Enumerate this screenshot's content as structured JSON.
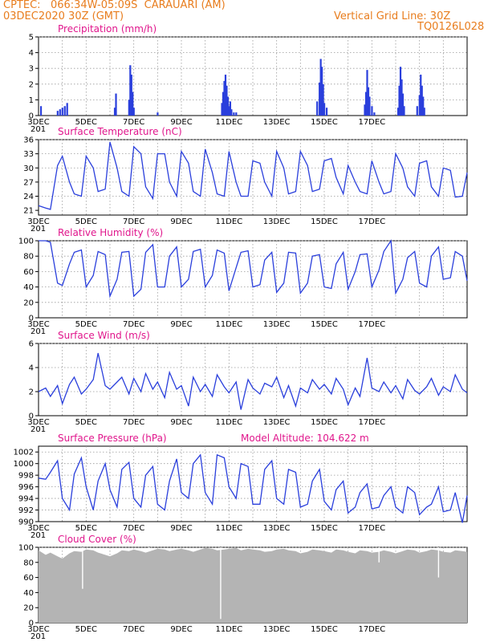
{
  "header": {
    "source": "CPTEC:",
    "location": "066:34W-05:09S",
    "station": "CARAUARI (AM)",
    "init": "03DEC2020 30Z (GMT)",
    "grid_note": "Vertical Grid Line: 30Z",
    "run_code": "TQ0126L028"
  },
  "colors": {
    "header": "#e87d1e",
    "title": "#e0168c",
    "series": "#2a3fdc",
    "cloud": "#b4b4b4"
  },
  "x_labels": [
    "3DEC",
    "5DEC",
    "7DEC",
    "9DEC",
    "11DEC",
    "13DEC",
    "15DEC",
    "17DEC"
  ],
  "year_stub": "201",
  "chart_data": [
    {
      "type": "bar",
      "title": "Precipitation (mm/h)",
      "ylim": [
        0,
        5
      ],
      "yticks": [
        "0",
        "1",
        "2",
        "3",
        "4",
        "5"
      ],
      "x_day_offsets": [
        0.1,
        0.8,
        0.9,
        1.0,
        1.1,
        1.2,
        3.2,
        3.25,
        3.8,
        3.85,
        3.9,
        3.95,
        4.0,
        5.0,
        7.7,
        7.75,
        7.8,
        7.85,
        7.9,
        7.95,
        8.0,
        8.05,
        8.1,
        8.2,
        8.3,
        11.7,
        11.8,
        11.85,
        11.9,
        11.95,
        12.0,
        12.1,
        13.7,
        13.75,
        13.8,
        13.85,
        13.9,
        14.0,
        14.1,
        15.1,
        15.15,
        15.2,
        15.25,
        15.3,
        15.35,
        15.9,
        16.0,
        16.05,
        16.1,
        16.15,
        16.2
      ],
      "values": [
        0.6,
        0.3,
        0.4,
        0.5,
        0.6,
        0.8,
        0.5,
        1.4,
        1.0,
        3.2,
        2.6,
        1.5,
        0.5,
        0.2,
        0.8,
        1.5,
        2.2,
        2.6,
        1.9,
        1.2,
        0.6,
        0.9,
        0.4,
        0.2,
        0.2,
        0.9,
        2.1,
        3.6,
        3.1,
        2.0,
        0.8,
        0.5,
        0.7,
        1.5,
        2.9,
        1.8,
        1.2,
        0.6,
        0.2,
        0.5,
        1.9,
        3.1,
        2.3,
        1.4,
        0.6,
        0.6,
        1.3,
        2.6,
        1.9,
        1.2,
        0.5
      ]
    },
    {
      "type": "line",
      "title": "Surface Temperature (nC)",
      "ylim": [
        20,
        36
      ],
      "yticks": [
        "21",
        "24",
        "27",
        "30",
        "33",
        "36"
      ],
      "x_day_offsets": [
        0,
        0.3,
        0.5,
        0.8,
        1.0,
        1.3,
        1.5,
        1.8,
        2.0,
        2.3,
        2.5,
        2.8,
        3.0,
        3.3,
        3.5,
        3.8,
        4.0,
        4.3,
        4.5,
        4.8,
        5.0,
        5.3,
        5.5,
        5.8,
        6.0,
        6.3,
        6.5,
        6.8,
        7.0,
        7.3,
        7.5,
        7.8,
        8.0,
        8.3,
        8.5,
        8.8,
        9.0,
        9.3,
        9.5,
        9.8,
        10.0,
        10.3,
        10.5,
        10.8,
        11.0,
        11.3,
        11.5,
        11.8,
        12.0,
        12.3,
        12.5,
        12.8,
        13.0,
        13.3,
        13.5,
        13.8,
        14.0,
        14.3,
        14.5,
        14.8,
        15.0,
        15.3,
        15.5,
        15.8,
        16.0,
        16.3,
        16.5,
        16.8,
        17.0,
        17.3,
        17.5,
        17.8,
        18.0
      ],
      "values": [
        22,
        21.5,
        21.2,
        30.5,
        32.5,
        27,
        24.5,
        24,
        32.5,
        30,
        25,
        25.5,
        35.5,
        30,
        25,
        24,
        34.5,
        33,
        26,
        23.5,
        33,
        33,
        27,
        24,
        33.5,
        31,
        25,
        24,
        34,
        29,
        24.5,
        24,
        33.5,
        27,
        24,
        24,
        31.5,
        31,
        27,
        24,
        33.5,
        30,
        24.5,
        25,
        33.5,
        30.5,
        25,
        25.5,
        31.5,
        32,
        28,
        24.5,
        30.5,
        27,
        25,
        24.5,
        31.5,
        27,
        24.5,
        25,
        33,
        30,
        26,
        24,
        31,
        31.5,
        26,
        24,
        30,
        29.5,
        23.8,
        24,
        29
      ]
    },
    {
      "type": "line",
      "title": "Relative Humidity (%)",
      "ylim": [
        0,
        100
      ],
      "yticks": [
        "0",
        "20",
        "40",
        "60",
        "80",
        "100"
      ],
      "x_day_offsets": [
        0,
        0.3,
        0.5,
        0.8,
        1.0,
        1.3,
        1.5,
        1.8,
        2.0,
        2.3,
        2.5,
        2.8,
        3.0,
        3.3,
        3.5,
        3.8,
        4.0,
        4.3,
        4.5,
        4.8,
        5.0,
        5.3,
        5.5,
        5.8,
        6.0,
        6.3,
        6.5,
        6.8,
        7.0,
        7.3,
        7.5,
        7.8,
        8.0,
        8.3,
        8.5,
        8.8,
        9.0,
        9.3,
        9.5,
        9.8,
        10.0,
        10.3,
        10.5,
        10.8,
        11.0,
        11.3,
        11.5,
        11.8,
        12.0,
        12.3,
        12.5,
        12.8,
        13.0,
        13.3,
        13.5,
        13.8,
        14.0,
        14.3,
        14.5,
        14.8,
        15.0,
        15.3,
        15.5,
        15.8,
        16.0,
        16.3,
        16.5,
        16.8,
        17.0,
        17.3,
        17.5,
        17.8,
        18.0
      ],
      "values": [
        100,
        100,
        98,
        45,
        42,
        70,
        85,
        88,
        40,
        55,
        86,
        82,
        28,
        50,
        85,
        86,
        28,
        37,
        85,
        95,
        40,
        40,
        80,
        92,
        40,
        50,
        86,
        89,
        40,
        55,
        88,
        84,
        35,
        65,
        85,
        87,
        40,
        43,
        75,
        85,
        33,
        45,
        85,
        84,
        32,
        45,
        80,
        82,
        40,
        38,
        70,
        85,
        37,
        60,
        82,
        83,
        40,
        62,
        86,
        100,
        32,
        50,
        78,
        86,
        45,
        40,
        80,
        92,
        50,
        52,
        86,
        80,
        48
      ]
    },
    {
      "type": "line",
      "title": "Surface Wind (m/s)",
      "ylim": [
        0,
        6
      ],
      "yticks": [
        "0",
        "2",
        "4",
        "6"
      ],
      "x_day_offsets": [
        0,
        0.3,
        0.5,
        0.8,
        1.0,
        1.3,
        1.5,
        1.8,
        2.0,
        2.3,
        2.5,
        2.8,
        3.0,
        3.3,
        3.5,
        3.8,
        4.0,
        4.3,
        4.5,
        4.8,
        5.0,
        5.3,
        5.5,
        5.8,
        6.0,
        6.3,
        6.5,
        6.8,
        7.0,
        7.3,
        7.5,
        7.8,
        8.0,
        8.3,
        8.5,
        8.8,
        9.0,
        9.3,
        9.5,
        9.8,
        10.0,
        10.3,
        10.5,
        10.8,
        11.0,
        11.3,
        11.5,
        11.8,
        12.0,
        12.3,
        12.5,
        12.8,
        13.0,
        13.3,
        13.5,
        13.8,
        14.0,
        14.3,
        14.5,
        14.8,
        15.0,
        15.3,
        15.5,
        15.8,
        16.0,
        16.3,
        16.5,
        16.8,
        17.0,
        17.3,
        17.5,
        17.8,
        18.0
      ],
      "values": [
        2.0,
        2.3,
        1.6,
        2.5,
        1.0,
        2.6,
        3.2,
        1.8,
        2.2,
        3.0,
        5.2,
        2.5,
        2.2,
        2.8,
        3.2,
        1.8,
        3.1,
        2.0,
        3.5,
        2.2,
        2.8,
        1.5,
        3.6,
        2.2,
        2.5,
        0.8,
        3.2,
        2.0,
        2.6,
        1.6,
        3.4,
        2.4,
        1.9,
        2.8,
        0.5,
        3.0,
        2.3,
        1.8,
        2.7,
        2.4,
        3.2,
        1.5,
        2.5,
        0.8,
        2.3,
        1.9,
        3.0,
        2.2,
        2.6,
        1.8,
        3.1,
        2.2,
        0.9,
        2.3,
        1.6,
        4.8,
        2.3,
        2.0,
        2.8,
        1.9,
        2.5,
        1.4,
        3.0,
        2.1,
        1.8,
        2.4,
        3.1,
        1.7,
        2.4,
        2.0,
        3.4,
        2.2,
        1.9
      ]
    },
    {
      "type": "line",
      "title": "Surface Pressure (hPa)",
      "subtitle": "Model Altitude: 104.622 m",
      "ylim": [
        990,
        1003
      ],
      "yticks": [
        "990",
        "992",
        "994",
        "996",
        "998",
        "1000",
        "1002"
      ],
      "x_day_offsets": [
        0,
        0.3,
        0.5,
        0.8,
        1.0,
        1.3,
        1.5,
        1.8,
        2.0,
        2.3,
        2.5,
        2.8,
        3.0,
        3.3,
        3.5,
        3.8,
        4.0,
        4.3,
        4.5,
        4.8,
        5.0,
        5.3,
        5.5,
        5.8,
        6.0,
        6.3,
        6.5,
        6.8,
        7.0,
        7.3,
        7.5,
        7.8,
        8.0,
        8.3,
        8.5,
        8.8,
        9.0,
        9.3,
        9.5,
        9.8,
        10.0,
        10.3,
        10.5,
        10.8,
        11.0,
        11.3,
        11.5,
        11.8,
        12.0,
        12.3,
        12.5,
        12.8,
        13.0,
        13.3,
        13.5,
        13.8,
        14.0,
        14.3,
        14.5,
        14.8,
        15.0,
        15.3,
        15.5,
        15.8,
        16.0,
        16.3,
        16.5,
        16.8,
        17.0,
        17.3,
        17.5,
        17.8,
        18.0
      ],
      "values": [
        997.5,
        997.3,
        998.5,
        1000.5,
        994,
        992,
        998.2,
        1001,
        996,
        992,
        997,
        1000,
        995.5,
        992.5,
        999,
        1000.2,
        994,
        992.5,
        998,
        999.5,
        993,
        992,
        997,
        1000.8,
        995,
        994,
        1000,
        1001.5,
        995,
        993,
        1001.5,
        1001,
        996,
        994,
        1000,
        999.5,
        993,
        993,
        999,
        1000.5,
        994,
        993,
        999,
        998.5,
        992.5,
        993,
        997,
        999,
        993.5,
        992,
        995.5,
        997,
        991.5,
        992.5,
        995,
        996.5,
        992.2,
        992.5,
        994.5,
        996,
        992.5,
        991.5,
        996,
        995,
        991.2,
        992.5,
        993,
        996,
        991.7,
        992,
        995,
        989.8,
        994.5
      ]
    },
    {
      "type": "area",
      "title": "Cloud Cover (%)",
      "ylim": [
        0,
        100
      ],
      "yticks": [
        "0",
        "20",
        "40",
        "60",
        "80",
        "100"
      ],
      "x_day_offsets": [
        0,
        0.3,
        0.5,
        0.8,
        1.0,
        1.3,
        1.5,
        1.8,
        2.0,
        2.3,
        2.5,
        2.8,
        3.0,
        3.3,
        3.5,
        3.8,
        4.0,
        4.3,
        4.5,
        4.8,
        5.0,
        5.3,
        5.5,
        5.8,
        6.0,
        6.3,
        6.5,
        6.8,
        7.0,
        7.3,
        7.5,
        7.8,
        8.0,
        8.3,
        8.5,
        8.8,
        9.0,
        9.3,
        9.5,
        9.8,
        10.0,
        10.3,
        10.5,
        10.8,
        11.0,
        11.3,
        11.5,
        11.8,
        12.0,
        12.3,
        12.5,
        12.8,
        13.0,
        13.3,
        13.5,
        13.8,
        14.0,
        14.3,
        14.5,
        14.8,
        15.0,
        15.3,
        15.5,
        15.8,
        16.0,
        16.3,
        16.5,
        16.8,
        17.0,
        17.3,
        17.5,
        17.8,
        18.0
      ],
      "values": [
        96,
        90,
        93,
        88,
        85,
        92,
        95,
        94,
        97,
        96,
        93,
        90,
        88,
        92,
        96,
        95,
        97,
        95,
        93,
        96,
        98,
        97,
        95,
        97,
        98,
        96,
        94,
        97,
        99,
        98,
        96,
        97,
        98,
        99,
        96,
        98,
        97,
        96,
        94,
        95,
        97,
        98,
        96,
        95,
        92,
        94,
        97,
        96,
        95,
        93,
        97,
        96,
        94,
        92,
        96,
        95,
        93,
        94,
        96,
        94,
        92,
        95,
        97,
        96,
        93,
        95,
        97,
        96,
        94,
        93,
        96,
        95,
        94
      ],
      "dips": [
        [
          1.85,
          45
        ],
        [
          4.65,
          95
        ],
        [
          7.65,
          5
        ],
        [
          14.3,
          80
        ],
        [
          16.8,
          60
        ]
      ]
    }
  ]
}
